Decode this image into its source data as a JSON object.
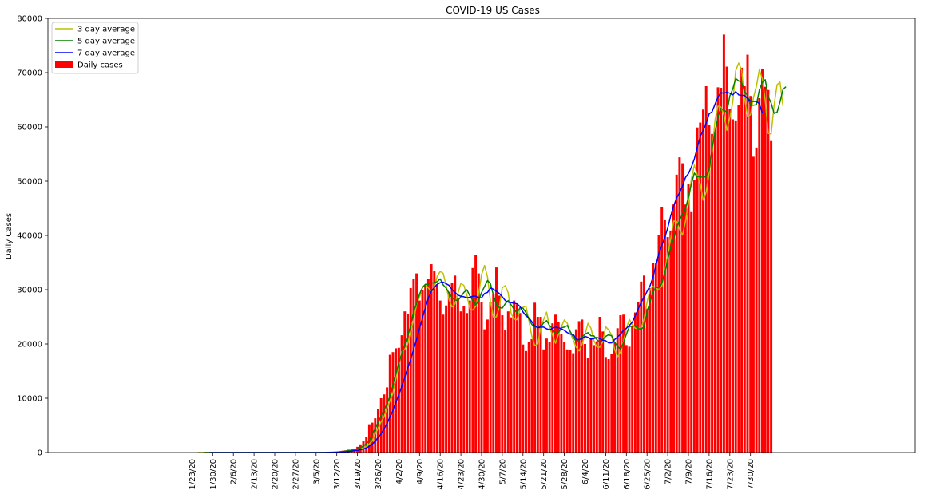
{
  "chart_data": {
    "type": "bar",
    "title": "COVID-19 US Cases",
    "xlabel": "",
    "ylabel": "Daily Cases",
    "ylim": [
      0,
      80000
    ],
    "yticks": [
      0,
      10000,
      20000,
      30000,
      40000,
      50000,
      60000,
      70000,
      80000
    ],
    "xtick_labels": [
      "1/23/20",
      "1/30/20",
      "2/6/20",
      "2/13/20",
      "2/20/20",
      "2/27/20",
      "3/5/20",
      "3/12/20",
      "3/19/20",
      "3/26/20",
      "4/2/20",
      "4/9/20",
      "4/16/20",
      "4/23/20",
      "4/30/20",
      "5/7/20",
      "5/14/20",
      "5/21/20",
      "5/28/20",
      "6/4/20",
      "6/11/20",
      "6/18/20",
      "6/25/20",
      "7/2/20",
      "7/9/20",
      "7/16/20",
      "7/23/20",
      "7/30/20"
    ],
    "grid": false,
    "legend_position": "top-left",
    "bar_series": {
      "name": "Daily cases",
      "color": "#ff0000",
      "values": [
        0,
        1,
        0,
        0,
        1,
        1,
        0,
        2,
        0,
        1,
        1,
        0,
        0,
        1,
        0,
        0,
        0,
        1,
        0,
        0,
        0,
        0,
        0,
        2,
        0,
        0,
        0,
        0,
        0,
        1,
        0,
        0,
        0,
        0,
        0,
        0,
        0,
        0,
        2,
        0,
        4,
        2,
        8,
        20,
        25,
        30,
        60,
        90,
        110,
        170,
        260,
        340,
        410,
        520,
        560,
        740,
        1050,
        1500,
        2200,
        2800,
        5200,
        5500,
        6300,
        8000,
        10000,
        10700,
        12000,
        18000,
        18500,
        19200,
        19300,
        21600,
        26000,
        25500,
        30300,
        32000,
        33000,
        28000,
        29900,
        30900,
        32000,
        34700,
        33400,
        31000,
        28000,
        25400,
        27100,
        29600,
        31300,
        32600,
        28500,
        26000,
        27000,
        25700,
        28000,
        34000,
        36400,
        33000,
        27700,
        22700,
        24500,
        27800,
        29200,
        34100,
        28900,
        25300,
        22500,
        26000,
        24900,
        28000,
        27300,
        25700,
        19900,
        18700,
        20400,
        20900,
        27600,
        25000,
        25000,
        19000,
        21000,
        20400,
        23800,
        25400,
        24100,
        21900,
        20300,
        19000,
        18900,
        18300,
        22700,
        24200,
        24500,
        20000,
        17400,
        21000,
        19800,
        20500,
        25000,
        22300,
        17600,
        17200,
        18100,
        20300,
        22900,
        25300,
        25400,
        19800,
        19500,
        23300,
        25800,
        27800,
        31500,
        32600,
        26500,
        30300,
        35000,
        34900,
        40000,
        45200,
        42800,
        39700,
        40900,
        45700,
        51200,
        54400,
        53300,
        45700,
        49500,
        44300,
        50200,
        59900,
        60800,
        63200,
        67500,
        60300,
        58700,
        59100,
        67300,
        67200,
        77000,
        71100,
        63300,
        61400,
        61200,
        64100,
        70900,
        67500,
        73300,
        65700,
        54500,
        56200,
        65300,
        70600,
        67400,
        66800,
        57400
      ]
    },
    "line_series": [
      {
        "name": "3 day average",
        "color": "#bfbf00",
        "start_index": 2,
        "values": [
          0,
          0,
          0,
          0,
          1,
          1,
          0,
          1,
          1,
          1,
          1,
          1,
          0,
          0,
          0,
          0,
          0,
          0,
          0,
          0,
          0,
          0,
          0,
          1,
          1,
          1,
          0,
          0,
          0,
          0,
          0,
          0,
          0,
          0,
          0,
          0,
          0,
          0,
          1,
          1,
          2,
          2,
          5,
          10,
          18,
          25,
          38,
          60,
          87,
          123,
          180,
          257,
          337,
          423,
          497,
          607,
          783,
          1097,
          1583,
          2167,
          3400,
          4500,
          5667,
          6600,
          8100,
          9567,
          10900,
          13567,
          16167,
          18567,
          19000,
          20033,
          22300,
          24367,
          27267,
          28600,
          30433,
          31000,
          30300,
          29600,
          30267,
          32533,
          33367,
          33033,
          30800,
          28133,
          26833,
          27367,
          29333,
          31167,
          30800,
          29033,
          26500,
          26233,
          26900,
          29233,
          32800,
          34467,
          32367,
          27800,
          24967,
          25000,
          26867,
          30367,
          30733,
          29433,
          25567,
          24600,
          24467,
          26300,
          26733,
          27000,
          24300,
          21433,
          19667,
          20000,
          22967,
          24500,
          25867,
          23000,
          21667,
          20133,
          21733,
          23200,
          24433,
          23800,
          22100,
          20733,
          19400,
          18733,
          19967,
          21733,
          23800,
          22900,
          20633,
          19467,
          19400,
          20433,
          23167,
          22600,
          21633,
          19033,
          17633,
          18533,
          20433,
          22833,
          24533,
          23567,
          22900,
          22867,
          22867,
          24633,
          27700,
          29967,
          30633,
          30200,
          30133,
          30600,
          33400,
          36633,
          39367,
          42667,
          42567,
          41133,
          40067,
          42600,
          45933,
          50433,
          52967,
          51133,
          49500,
          46500,
          48000,
          51467,
          55300,
          61300,
          63833,
          63667,
          62200,
          59367,
          61700,
          64533,
          70367,
          71767,
          70467,
          65267,
          61967,
          62233,
          65400,
          67500,
          70567,
          68833,
          64833,
          58800,
          58667,
          64033,
          67767,
          68267,
          63867
        ]
      },
      {
        "name": "5 day average",
        "color": "#008000",
        "start_index": 4,
        "values": [
          1,
          1,
          0,
          1,
          1,
          1,
          1,
          1,
          0,
          0,
          0,
          0,
          0,
          0,
          0,
          0,
          0,
          0,
          0,
          0,
          0,
          0,
          0,
          0,
          0,
          0,
          0,
          0,
          0,
          0,
          0,
          0,
          0,
          0,
          0,
          0,
          1,
          1,
          3,
          7,
          12,
          17,
          29,
          47,
          67,
          92,
          138,
          194,
          258,
          328,
          418,
          514,
          656,
          874,
          1210,
          1598,
          2190,
          3440,
          4390,
          5560,
          6800,
          7800,
          9000,
          10400,
          12560,
          14440,
          16520,
          18280,
          19920,
          21480,
          23460,
          26000,
          27400,
          29200,
          30400,
          31000,
          31000,
          31200,
          31300,
          31500,
          32000,
          30900,
          30300,
          29400,
          28500,
          28100,
          28000,
          28700,
          29500,
          30000,
          28900,
          28000,
          27200,
          28000,
          29500,
          30600,
          31700,
          31100,
          29000,
          27300,
          26700,
          26600,
          27400,
          28000,
          27200,
          26400,
          25700,
          26700,
          26600,
          25800,
          24600,
          23600,
          23000,
          23400,
          23100,
          23900,
          24300,
          23400,
          22800,
          21900,
          22100,
          23000,
          23100,
          23400,
          22300,
          21300,
          20400,
          20800,
          21300,
          21800,
          22100,
          21500,
          21500,
          20800,
          20300,
          20800,
          21400,
          21700,
          21500,
          20300,
          19600,
          19000,
          20200,
          21800,
          23200,
          23300,
          23300,
          22800,
          22800,
          23100,
          26000,
          27700,
          29500,
          30500,
          30300,
          31200,
          33200,
          35500,
          37900,
          39400,
          41500,
          42800,
          43900,
          45000,
          47000,
          49500,
          51500,
          50800,
          50800,
          50700,
          50900,
          52000,
          56000,
          59100,
          61800,
          63400,
          63100,
          62700,
          65700,
          67000,
          68900,
          68500,
          68200,
          66500,
          65800,
          64000,
          64000,
          64100,
          66800,
          68200,
          68700,
          65600,
          64400,
          62500,
          62700,
          64600,
          66900,
          67400
        ]
      },
      {
        "name": "7 day average",
        "color": "#0000ff",
        "start_index": 6,
        "values": [
          1,
          1,
          1,
          1,
          1,
          1,
          1,
          1,
          0,
          0,
          0,
          0,
          0,
          0,
          0,
          0,
          0,
          0,
          0,
          0,
          0,
          0,
          0,
          0,
          0,
          0,
          0,
          0,
          0,
          0,
          0,
          0,
          0,
          0,
          0,
          1,
          1,
          2,
          5,
          9,
          14,
          20,
          33,
          49,
          70,
          98,
          137,
          187,
          249,
          325,
          411,
          511,
          651,
          854,
          1134,
          1523,
          2071,
          2786,
          3457,
          4329,
          5357,
          6571,
          7800,
          9214,
          10714,
          12214,
          13857,
          15543,
          17200,
          19000,
          20800,
          22900,
          24800,
          26700,
          28500,
          29700,
          30400,
          31000,
          31300,
          31400,
          31100,
          30800,
          30000,
          29500,
          29000,
          28800,
          28700,
          28500,
          28600,
          28800,
          28800,
          28500,
          28500,
          29300,
          29500,
          30300,
          30100,
          29700,
          29300,
          28700,
          28000,
          27700,
          27600,
          27500,
          27400,
          26900,
          25900,
          25200,
          24800,
          24100,
          23300,
          23000,
          23100,
          23100,
          22800,
          22600,
          22900,
          23100,
          23000,
          22800,
          22500,
          22100,
          21800,
          21800,
          20900,
          20800,
          21000,
          21400,
          21200,
          20900,
          21000,
          21200,
          21000,
          20700,
          20600,
          20200,
          20200,
          20800,
          21300,
          21800,
          22500,
          22900,
          23400,
          24000,
          25200,
          26400,
          27700,
          28600,
          29700,
          30700,
          32300,
          34500,
          36700,
          38200,
          39600,
          41400,
          43600,
          45400,
          46900,
          47900,
          49100,
          50700,
          51400,
          52600,
          54100,
          56200,
          58200,
          59400,
          60600,
          62400,
          62800,
          64200,
          65500,
          66300,
          66200,
          66400,
          66200,
          65900,
          66500,
          65900,
          65800,
          65800,
          65200,
          64800,
          64700,
          64700,
          64300,
          62600
        ]
      }
    ]
  }
}
